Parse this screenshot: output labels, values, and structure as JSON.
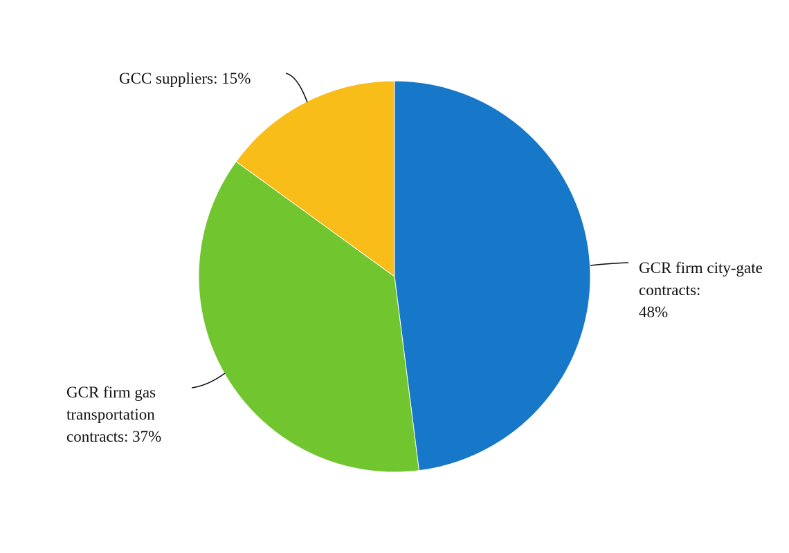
{
  "chart_data": {
    "type": "pie",
    "categories": [
      "GCR firm city-gate contracts:",
      "GCR firm gas transportation contracts:",
      "GCC suppliers:"
    ],
    "values": [
      48,
      37,
      15
    ],
    "value_labels": [
      "48%",
      "37%",
      "15%"
    ],
    "colors": [
      "#1777c8",
      "#71c62f",
      "#f9bd19"
    ]
  }
}
